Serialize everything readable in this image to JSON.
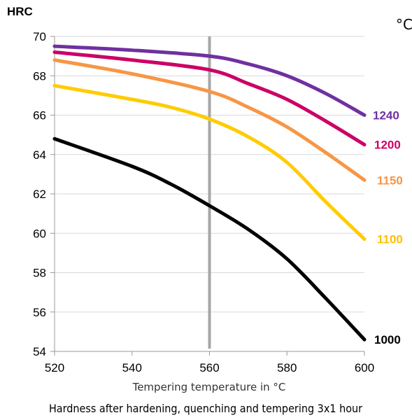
{
  "chart_data": {
    "type": "line",
    "title": "",
    "caption": "Hardness after hardening, quenching and tempering  3x1 hour",
    "xlabel": "Tempering temperature in °C",
    "ylabel": "HRC",
    "legend_title": "°C",
    "xlim": [
      520,
      600
    ],
    "ylim": [
      54,
      70
    ],
    "xticks": [
      "520",
      "540",
      "560",
      "580",
      "600"
    ],
    "yticks": [
      "54",
      "56",
      "58",
      "60",
      "62",
      "64",
      "66",
      "68",
      "70"
    ],
    "grid": "horizontal",
    "vertical_marker": 560,
    "legend_placement": "right, labels at line ends",
    "series": [
      {
        "name": "1240",
        "color": "#7030a0",
        "x": [
          520,
          540,
          560,
          570,
          580,
          590,
          600
        ],
        "y": [
          69.5,
          69.3,
          69.0,
          68.6,
          68.0,
          67.1,
          66.0
        ]
      },
      {
        "name": "1200",
        "color": "#cc0066",
        "x": [
          520,
          540,
          560,
          570,
          580,
          590,
          600
        ],
        "y": [
          69.2,
          68.8,
          68.3,
          67.6,
          66.8,
          65.7,
          64.5
        ]
      },
      {
        "name": "1150",
        "color": "#f79646",
        "x": [
          520,
          540,
          560,
          570,
          580,
          590,
          600
        ],
        "y": [
          68.8,
          68.1,
          67.2,
          66.4,
          65.4,
          64.1,
          62.7
        ]
      },
      {
        "name": "1100",
        "color": "#ffcc00",
        "x": [
          520,
          540,
          550,
          560,
          570,
          580,
          590,
          600
        ],
        "y": [
          67.5,
          66.8,
          66.4,
          65.8,
          64.9,
          63.6,
          61.6,
          59.7
        ]
      },
      {
        "name": "1000",
        "color": "#000000",
        "x": [
          520,
          540,
          550,
          560,
          570,
          580,
          590,
          600
        ],
        "y": [
          64.8,
          63.4,
          62.5,
          61.4,
          60.2,
          58.7,
          56.7,
          54.6
        ]
      }
    ]
  }
}
